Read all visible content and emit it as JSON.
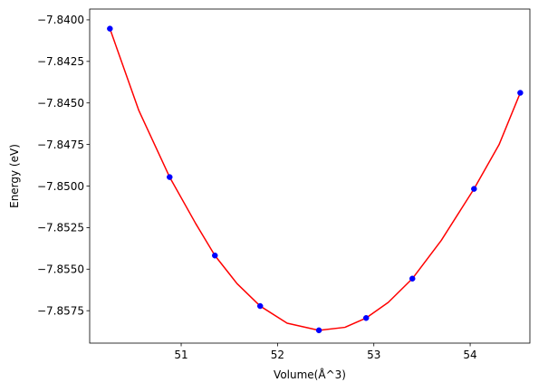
{
  "chart_data": {
    "type": "scatter",
    "title": "",
    "xlabel": "Volume(Å^3)",
    "ylabel": "Energy (eV)",
    "xlim": [
      50.05,
      54.62
    ],
    "ylim": [
      -7.85945,
      -7.83935
    ],
    "x_ticks": [
      51,
      52,
      53,
      54
    ],
    "y_ticks": [
      -7.84,
      -7.8425,
      -7.845,
      -7.8475,
      -7.85,
      -7.8525,
      -7.855,
      -7.8575
    ],
    "x_tick_labels": [
      "51",
      "52",
      "53",
      "54"
    ],
    "y_tick_labels": [
      "−7.8400",
      "−7.8425",
      "−7.8450",
      "−7.8475",
      "−7.8500",
      "−7.8525",
      "−7.8550",
      "−7.8575"
    ],
    "grid": false,
    "legend": "none",
    "series": [
      {
        "kind": "points",
        "color": "#0000ff",
        "marker": "circle",
        "x": [
          50.26,
          50.88,
          51.35,
          51.82,
          52.43,
          52.92,
          53.4,
          54.04,
          54.52
        ],
        "y": [
          -7.84053,
          -7.84946,
          -7.85418,
          -7.85722,
          -7.85868,
          -7.85794,
          -7.85557,
          -7.85017,
          -7.84439
        ]
      },
      {
        "kind": "fit-curve",
        "color": "#ff0000",
        "x": [
          50.26,
          50.56,
          50.88,
          51.15,
          51.35,
          51.58,
          51.82,
          52.1,
          52.43,
          52.7,
          52.92,
          53.15,
          53.4,
          53.7,
          54.04,
          54.3,
          54.52
        ],
        "y": [
          -7.84053,
          -7.84545,
          -7.84946,
          -7.85225,
          -7.85418,
          -7.85587,
          -7.85722,
          -7.85825,
          -7.85868,
          -7.8585,
          -7.85794,
          -7.857,
          -7.85557,
          -7.85327,
          -7.85017,
          -7.84751,
          -7.84439
        ]
      }
    ]
  }
}
